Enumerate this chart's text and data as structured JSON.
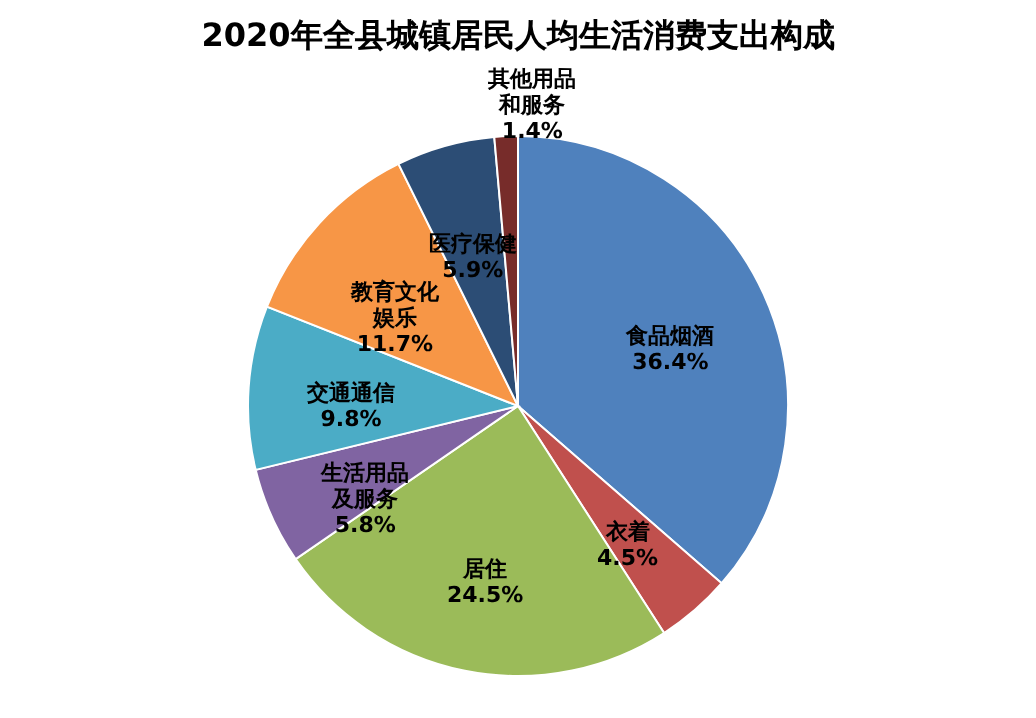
{
  "chart_data": {
    "type": "pie",
    "title": "2020年全县城镇居民人均生活消费支出构成",
    "categories": [
      "食品烟酒",
      "衣着",
      "居住",
      "生活用品及服务",
      "交通通信",
      "教育文化娱乐",
      "医疗保健",
      "其他用品和服务"
    ],
    "values": [
      36.4,
      4.5,
      24.5,
      5.8,
      9.8,
      11.7,
      5.9,
      1.4
    ],
    "value_labels": [
      "36.4%",
      "4.5%",
      "24.5%",
      "5.8%",
      "9.8%",
      "11.7%",
      "5.9%",
      "1.4%"
    ],
    "colors": [
      "#4f81bd",
      "#c0504d",
      "#9bbb59",
      "#8064a2",
      "#4bacc6",
      "#f79646",
      "#2c4d75",
      "#772c2a"
    ],
    "legend": false
  }
}
